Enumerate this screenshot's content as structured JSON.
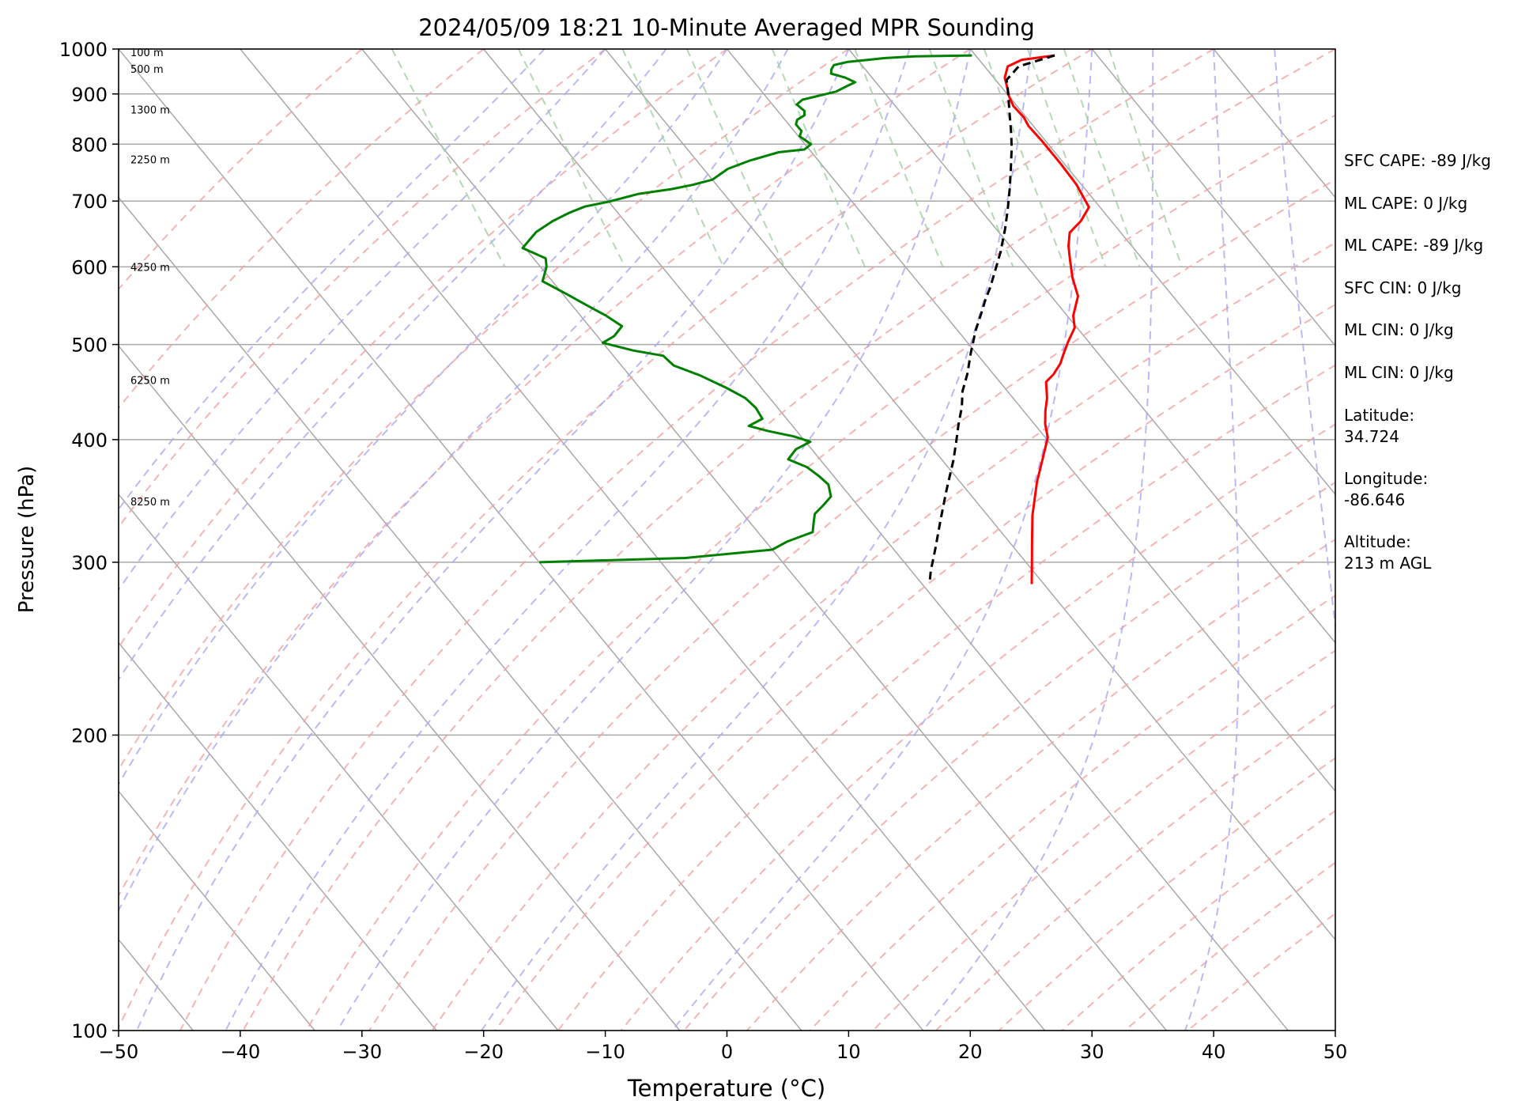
{
  "chart_data": {
    "type": "line",
    "title": "2024/05/09 18:21 10-Minute Averaged MPR Sounding",
    "xlabel": "Temperature (°C)",
    "ylabel": "Pressure (hPa)",
    "xlim": [
      -50,
      50
    ],
    "ylim": [
      1000,
      100
    ],
    "y_scale": "log",
    "grid": true,
    "x_ticks": [
      "−50",
      "−40",
      "−30",
      "−20",
      "−10",
      "0",
      "10",
      "20",
      "30",
      "40",
      "50"
    ],
    "y_ticks": [
      "100",
      "200",
      "300",
      "400",
      "500",
      "600",
      "700",
      "800",
      "900",
      "1000"
    ],
    "height_labels": [
      {
        "label": "8250 m",
        "pressure": 346
      },
      {
        "label": "6250 m",
        "pressure": 460
      },
      {
        "label": "4250 m",
        "pressure": 600
      },
      {
        "label": "2250 m",
        "pressure": 772
      },
      {
        "label": "1300 m",
        "pressure": 868
      },
      {
        "label": "500 m",
        "pressure": 955
      },
      {
        "label": "100 m",
        "pressure": 993
      }
    ],
    "series": [
      {
        "key": "temperature",
        "color": "#ff0000",
        "points": [
          [
            26.5,
            985
          ],
          [
            23.5,
            975
          ],
          [
            21.9,
            960
          ],
          [
            20.9,
            935
          ],
          [
            20.4,
            912
          ],
          [
            20.0,
            895
          ],
          [
            19.7,
            875
          ],
          [
            19.8,
            852
          ],
          [
            19.6,
            835
          ],
          [
            19.7,
            805
          ],
          [
            19.7,
            765
          ],
          [
            19.6,
            728
          ],
          [
            19.1,
            690
          ],
          [
            17.5,
            668
          ],
          [
            15.8,
            650
          ],
          [
            14.8,
            630
          ],
          [
            14.0,
            610
          ],
          [
            13.0,
            585
          ],
          [
            12.2,
            560
          ],
          [
            10.5,
            535
          ],
          [
            9.8,
            520
          ],
          [
            8.3,
            503
          ],
          [
            7.2,
            490
          ],
          [
            6.2,
            478
          ],
          [
            4.9,
            466
          ],
          [
            3.8,
            458
          ],
          [
            2.8,
            441
          ],
          [
            1.8,
            428
          ],
          [
            0.9,
            415
          ],
          [
            0.2,
            402
          ],
          [
            -1.6,
            383
          ],
          [
            -3.7,
            362
          ],
          [
            -6.3,
            335
          ],
          [
            -8.1,
            315
          ],
          [
            -9.9,
            296
          ],
          [
            -11.0,
            285
          ]
        ]
      },
      {
        "key": "dewpoint",
        "color": "#008000",
        "points": [
          [
            19.7,
            985
          ],
          [
            15.0,
            983
          ],
          [
            12.4,
            979
          ],
          [
            9.0,
            970
          ],
          [
            7.7,
            963
          ],
          [
            7.2,
            953
          ],
          [
            6.9,
            944
          ],
          [
            7.8,
            935
          ],
          [
            8.3,
            925
          ],
          [
            7.5,
            918
          ],
          [
            6.1,
            905
          ],
          [
            2.8,
            888
          ],
          [
            2.0,
            878
          ],
          [
            2.2,
            865
          ],
          [
            1.9,
            856
          ],
          [
            1.0,
            847
          ],
          [
            0.6,
            838
          ],
          [
            0.6,
            825
          ],
          [
            0.1,
            815
          ],
          [
            0.5,
            800
          ],
          [
            -0.4,
            790
          ],
          [
            -2.7,
            785
          ],
          [
            -5.6,
            770
          ],
          [
            -8.0,
            755
          ],
          [
            -10.0,
            736
          ],
          [
            -12.0,
            727
          ],
          [
            -14.0,
            720
          ],
          [
            -17.0,
            712
          ],
          [
            -20.0,
            699
          ],
          [
            -22.3,
            691
          ],
          [
            -24.0,
            681
          ],
          [
            -25.9,
            668
          ],
          [
            -28.0,
            651
          ],
          [
            -29.0,
            640
          ],
          [
            -30.2,
            627
          ],
          [
            -29.0,
            612
          ],
          [
            -29.5,
            600
          ],
          [
            -30.8,
            580
          ],
          [
            -29.7,
            563
          ],
          [
            -28.7,
            547
          ],
          [
            -27.9,
            535
          ],
          [
            -27.3,
            522
          ],
          [
            -28.6,
            510
          ],
          [
            -30.0,
            502
          ],
          [
            -28.0,
            493
          ],
          [
            -25.9,
            487
          ],
          [
            -25.7,
            476
          ],
          [
            -24.2,
            465
          ],
          [
            -22.9,
            452
          ],
          [
            -22.0,
            441
          ],
          [
            -21.8,
            431
          ],
          [
            -22.0,
            420
          ],
          [
            -23.6,
            413
          ],
          [
            -22.3,
            408
          ],
          [
            -20.6,
            403
          ],
          [
            -19.6,
            398
          ],
          [
            -21.3,
            391
          ],
          [
            -22.6,
            382
          ],
          [
            -21.6,
            375
          ],
          [
            -21.2,
            367
          ],
          [
            -21.0,
            360
          ],
          [
            -21.6,
            350
          ],
          [
            -22.8,
            343
          ],
          [
            -24.1,
            336
          ],
          [
            -24.8,
            329
          ],
          [
            -25.5,
            322
          ],
          [
            -28.2,
            315
          ],
          [
            -30.0,
            309
          ],
          [
            -37.7,
            303
          ],
          [
            -50.0,
            300
          ]
        ]
      },
      {
        "key": "parcel",
        "color": "#000000",
        "dashed": true,
        "points": [
          [
            26.5,
            985
          ],
          [
            22.8,
            960
          ],
          [
            20.9,
            930
          ],
          [
            20.4,
            911
          ],
          [
            18.9,
            860
          ],
          [
            17.6,
            818
          ],
          [
            16.7,
            792
          ],
          [
            15.3,
            756
          ],
          [
            13.8,
            720
          ],
          [
            12.3,
            687
          ],
          [
            10.7,
            655
          ],
          [
            8.8,
            621
          ],
          [
            7.4,
            599
          ],
          [
            5.6,
            572
          ],
          [
            4.4,
            556
          ],
          [
            3.1,
            538
          ],
          [
            1.5,
            517
          ],
          [
            0.5,
            503
          ],
          [
            -0.3,
            492
          ],
          [
            -1.3,
            478
          ],
          [
            -2.1,
            467
          ],
          [
            -3.7,
            448
          ],
          [
            -4.8,
            432
          ],
          [
            -6.3,
            414
          ],
          [
            -7.7,
            397
          ],
          [
            -9.1,
            381
          ],
          [
            -11.7,
            355
          ],
          [
            -14.2,
            331
          ],
          [
            -16.5,
            310
          ],
          [
            -18.4,
            294
          ],
          [
            -19.4,
            285
          ]
        ]
      }
    ]
  },
  "sidebar": {
    "sfc_cape": "SFC CAPE: -89 J/kg",
    "ml_cape_1": "ML CAPE: 0 J/kg",
    "ml_cape_2": "ML CAPE: -89 J/kg",
    "sfc_cin": "SFC CIN: 0 J/kg",
    "ml_cin_1": "ML CIN: 0 J/kg",
    "ml_cin_2": "ML CIN: 0 J/kg",
    "latitude": "Latitude:\n34.724",
    "longitude": "Longitude:\n-86.646",
    "altitude": "Altitude:\n213 m AGL"
  },
  "colors": {
    "isotherm": "#a8a8a8",
    "dry_adiabat": "#f4a0a0",
    "moist_adiabat": "#a8a8f4",
    "mixing_ratio": "#a0d0a0",
    "isobar": "#a8a8a8"
  }
}
